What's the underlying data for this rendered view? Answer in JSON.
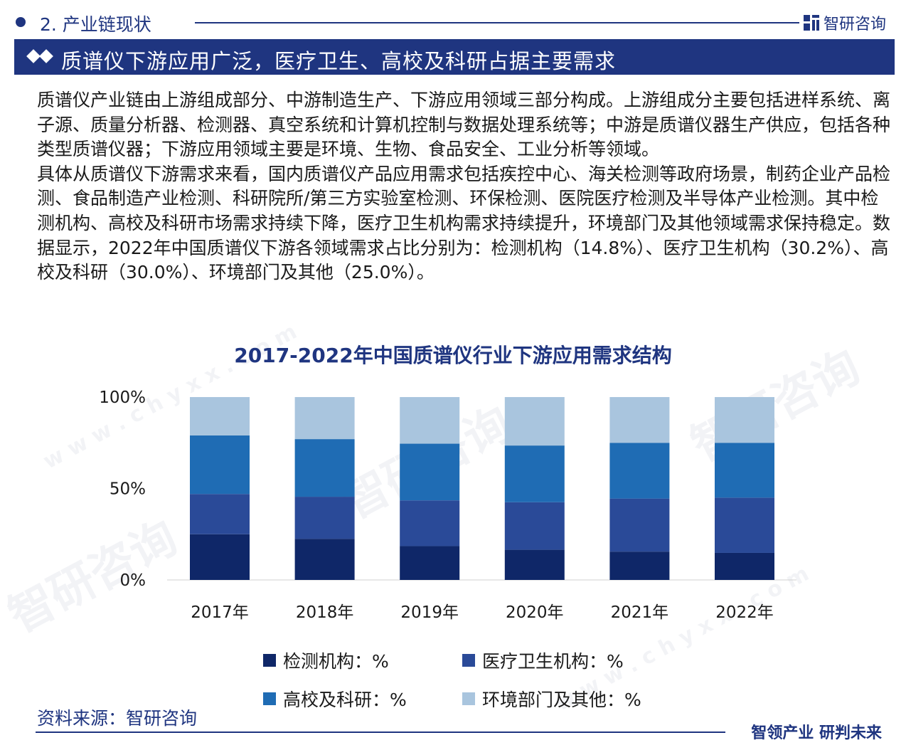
{
  "header": {
    "section_title": "2. 产业链现状",
    "brand_name": "智研咨询"
  },
  "banner": {
    "title": "质谱仪下游应用广泛，医疗卫生、高校及科研占据主要需求"
  },
  "body": {
    "paragraph_1": "质谱仪产业链由上游组成部分、中游制造生产、下游应用领域三部分构成。上游组成分主要包括进样系统、离子源、质量分析器、检测器、真空系统和计算机控制与数据处理系统等；中游是质谱仪器生产供应，包括各种类型质谱仪器；下游应用领域主要是环境、生物、食品安全、工业分析等领域。",
    "paragraph_2": "具体从质谱仪下游需求来看，国内质谱仪产品应用需求包括疾控中心、海关检测等政府场景，制药企业产品检测、食品制造产业检测、科研院所/第三方实验室检测、环保检测、医院医疗检测及半导体产业检测。其中检测机构、高校及科研市场需求持续下降，医疗卫生机构需求持续提升，环境部门及其他领域需求保持稳定。数据显示，2022年中国质谱仪下游各领域需求占比分别为：检测机构（14.8%）、医疗卫生机构（30.2%）、高校及科研（30.0%）、环境部门及其他（25.0%）。"
  },
  "watermark": {
    "text": "智研咨询",
    "url_text": "w w w . c h y x x . c o m"
  },
  "colors": {
    "primary": "#1f3580",
    "series_1": "#0f2768",
    "series_2": "#2a4a98",
    "series_3": "#1f6cb4",
    "series_4": "#a9c5de"
  },
  "chart_data": {
    "type": "bar",
    "stacked": true,
    "title": "2017-2022年中国质谱仪行业下游应用需求结构",
    "categories": [
      "2017年",
      "2018年",
      "2019年",
      "2020年",
      "2021年",
      "2022年"
    ],
    "y_ticks": [
      "0%",
      "50%",
      "100%"
    ],
    "ylim": [
      0,
      100
    ],
    "series": [
      {
        "name": "检测机构：%",
        "values": [
          25.0,
          22.5,
          18.5,
          16.5,
          15.5,
          14.8
        ]
      },
      {
        "name": "医疗卫生机构：%",
        "values": [
          22.0,
          23.0,
          25.0,
          26.0,
          29.0,
          30.2
        ]
      },
      {
        "name": "高校及科研：%",
        "values": [
          32.0,
          31.5,
          31.0,
          31.0,
          30.5,
          30.0
        ]
      },
      {
        "name": "环境部门及其他：%",
        "values": [
          21.0,
          23.0,
          25.5,
          26.5,
          25.0,
          25.0
        ]
      }
    ],
    "xlabel": "",
    "ylabel": "",
    "legend_position": "bottom",
    "grid": false
  },
  "footer": {
    "source": "资料来源：智研咨询",
    "slogan": "智领产业  研判未来"
  }
}
